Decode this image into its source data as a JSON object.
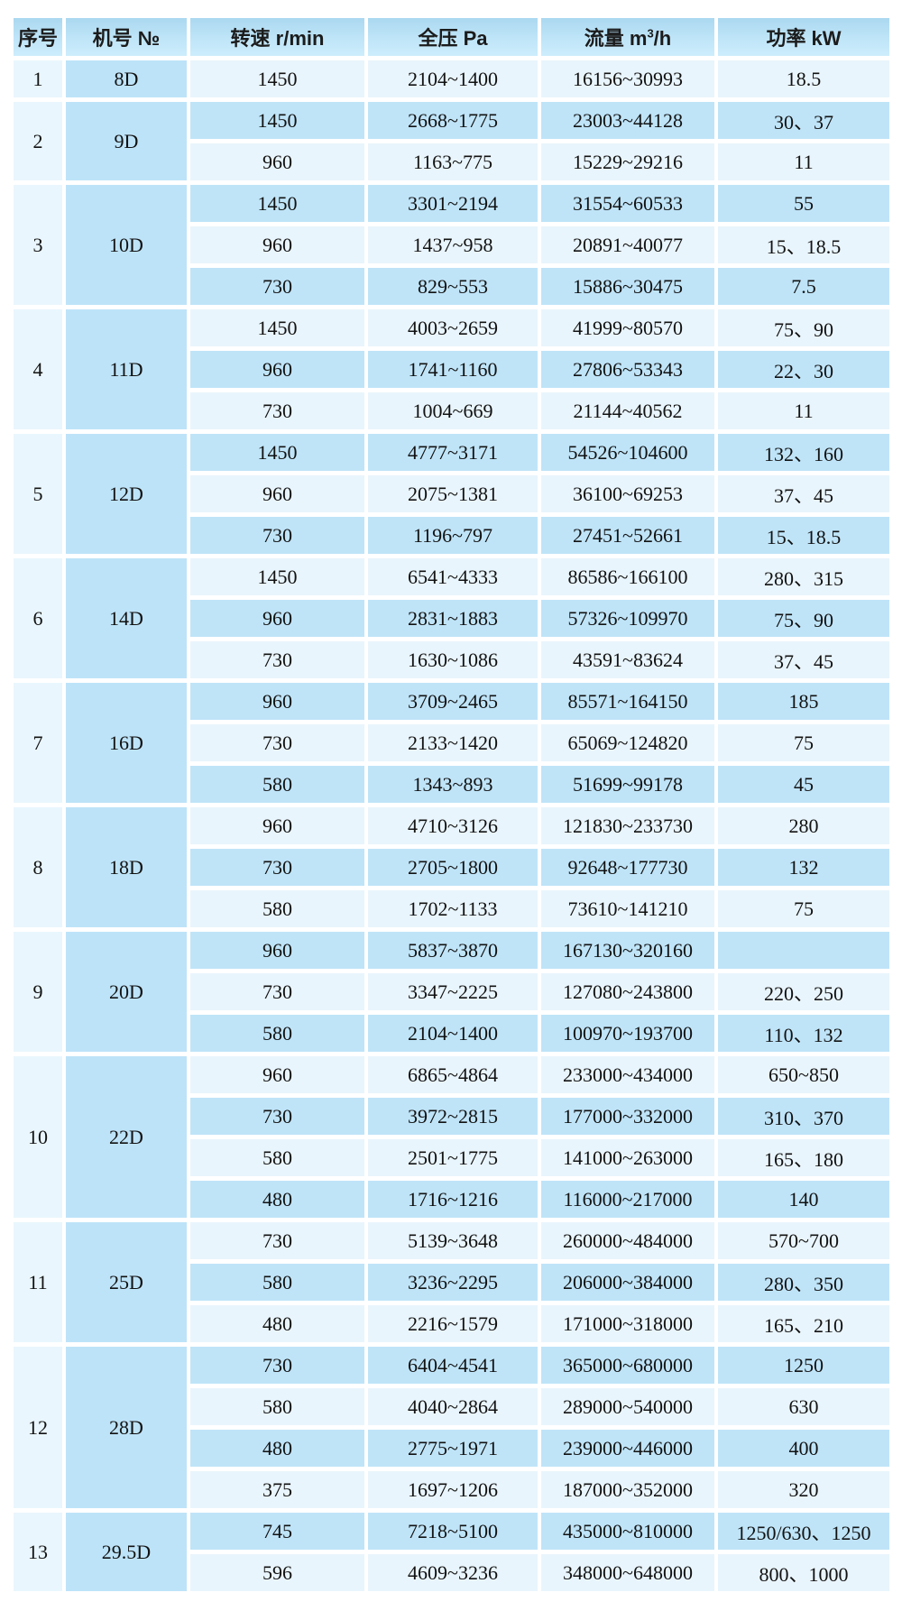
{
  "table": {
    "headers": {
      "serial": "序号",
      "model": "机号 №",
      "speed": "转速 r/min",
      "pressure": "全压 Pa",
      "flow_pre": "流量 m",
      "flow_sup": "3",
      "flow_post": "/h",
      "power": "功率 kW"
    },
    "groups": [
      {
        "no": "1",
        "model": "8D",
        "rows": [
          {
            "speed": "1450",
            "pressure": "2104~1400",
            "flow": "16156~30993",
            "power": "18.5"
          }
        ]
      },
      {
        "no": "2",
        "model": "9D",
        "rows": [
          {
            "speed": "1450",
            "pressure": "2668~1775",
            "flow": "23003~44128",
            "power": "30、37"
          },
          {
            "speed": "960",
            "pressure": "1163~775",
            "flow": "15229~29216",
            "power": "11"
          }
        ]
      },
      {
        "no": "3",
        "model": "10D",
        "rows": [
          {
            "speed": "1450",
            "pressure": "3301~2194",
            "flow": "31554~60533",
            "power": "55"
          },
          {
            "speed": "960",
            "pressure": "1437~958",
            "flow": "20891~40077",
            "power": "15、18.5"
          },
          {
            "speed": "730",
            "pressure": "829~553",
            "flow": "15886~30475",
            "power": "7.5"
          }
        ]
      },
      {
        "no": "4",
        "model": "11D",
        "rows": [
          {
            "speed": "1450",
            "pressure": "4003~2659",
            "flow": "41999~80570",
            "power": "75、90"
          },
          {
            "speed": "960",
            "pressure": "1741~1160",
            "flow": "27806~53343",
            "power": "22、30"
          },
          {
            "speed": "730",
            "pressure": "1004~669",
            "flow": "21144~40562",
            "power": "11"
          }
        ]
      },
      {
        "no": "5",
        "model": "12D",
        "rows": [
          {
            "speed": "1450",
            "pressure": "4777~3171",
            "flow": "54526~104600",
            "power": "132、160"
          },
          {
            "speed": "960",
            "pressure": "2075~1381",
            "flow": "36100~69253",
            "power": "37、45"
          },
          {
            "speed": "730",
            "pressure": "1196~797",
            "flow": "27451~52661",
            "power": "15、18.5"
          }
        ]
      },
      {
        "no": "6",
        "model": "14D",
        "rows": [
          {
            "speed": "1450",
            "pressure": "6541~4333",
            "flow": "86586~166100",
            "power": "280、315"
          },
          {
            "speed": "960",
            "pressure": "2831~1883",
            "flow": "57326~109970",
            "power": "75、90"
          },
          {
            "speed": "730",
            "pressure": "1630~1086",
            "flow": "43591~83624",
            "power": "37、45"
          }
        ]
      },
      {
        "no": "7",
        "model": "16D",
        "rows": [
          {
            "speed": "960",
            "pressure": "3709~2465",
            "flow": "85571~164150",
            "power": "185"
          },
          {
            "speed": "730",
            "pressure": "2133~1420",
            "flow": "65069~124820",
            "power": "75"
          },
          {
            "speed": "580",
            "pressure": "1343~893",
            "flow": "51699~99178",
            "power": "45"
          }
        ]
      },
      {
        "no": "8",
        "model": "18D",
        "rows": [
          {
            "speed": "960",
            "pressure": "4710~3126",
            "flow": "121830~233730",
            "power": "280"
          },
          {
            "speed": "730",
            "pressure": "2705~1800",
            "flow": "92648~177730",
            "power": "132"
          },
          {
            "speed": "580",
            "pressure": "1702~1133",
            "flow": "73610~141210",
            "power": "75"
          }
        ]
      },
      {
        "no": "9",
        "model": "20D",
        "rows": [
          {
            "speed": "960",
            "pressure": "5837~3870",
            "flow": "167130~320160",
            "power": ""
          },
          {
            "speed": "730",
            "pressure": "3347~2225",
            "flow": "127080~243800",
            "power": "220、250"
          },
          {
            "speed": "580",
            "pressure": "2104~1400",
            "flow": "100970~193700",
            "power": "110、132"
          }
        ]
      },
      {
        "no": "10",
        "model": "22D",
        "rows": [
          {
            "speed": "960",
            "pressure": "6865~4864",
            "flow": "233000~434000",
            "power": "650~850"
          },
          {
            "speed": "730",
            "pressure": "3972~2815",
            "flow": "177000~332000",
            "power": "310、370"
          },
          {
            "speed": "580",
            "pressure": "2501~1775",
            "flow": "141000~263000",
            "power": "165、180"
          },
          {
            "speed": "480",
            "pressure": "1716~1216",
            "flow": "116000~217000",
            "power": "140"
          }
        ]
      },
      {
        "no": "11",
        "model": "25D",
        "rows": [
          {
            "speed": "730",
            "pressure": "5139~3648",
            "flow": "260000~484000",
            "power": "570~700"
          },
          {
            "speed": "580",
            "pressure": "3236~2295",
            "flow": "206000~384000",
            "power": "280、350"
          },
          {
            "speed": "480",
            "pressure": "2216~1579",
            "flow": "171000~318000",
            "power": "165、210"
          }
        ]
      },
      {
        "no": "12",
        "model": "28D",
        "rows": [
          {
            "speed": "730",
            "pressure": "6404~4541",
            "flow": "365000~680000",
            "power": "1250"
          },
          {
            "speed": "580",
            "pressure": "4040~2864",
            "flow": "289000~540000",
            "power": "630"
          },
          {
            "speed": "480",
            "pressure": "2775~1971",
            "flow": "239000~446000",
            "power": "400"
          },
          {
            "speed": "375",
            "pressure": "1697~1206",
            "flow": "187000~352000",
            "power": "320"
          }
        ]
      },
      {
        "no": "13",
        "model": "29.5D",
        "rows": [
          {
            "speed": "745",
            "pressure": "7218~5100",
            "flow": "435000~810000",
            "power": "1250/630、1250"
          },
          {
            "speed": "596",
            "pressure": "4609~3236",
            "flow": "348000~648000",
            "power": "800、1000"
          }
        ]
      }
    ]
  },
  "colors": {
    "row_light": "#e9f5fc",
    "row_dark": "#bfe4f8",
    "serial_cell": "#e9f6fd",
    "model_cell": "#bde3f8",
    "header_top": "#abd8f0",
    "header_bottom": "#cdedfc",
    "text": "#121212",
    "background": "#ffffff"
  }
}
